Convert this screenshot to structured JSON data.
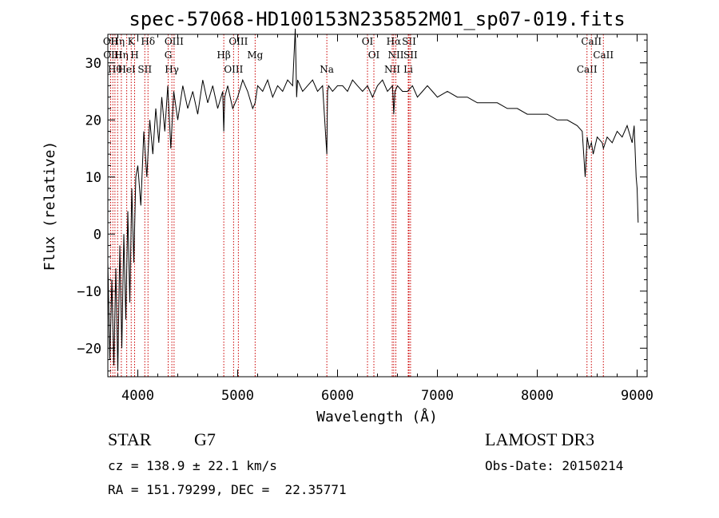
{
  "chart_data": {
    "type": "line",
    "title": "spec-57068-HD100153N235852M01_sp07-019.fits",
    "xlabel": "Wavelength (Å)",
    "ylabel": "Flux (relative)",
    "xlim": [
      3700,
      9100
    ],
    "ylim": [
      -25,
      35
    ],
    "xticks": [
      4000,
      5000,
      6000,
      7000,
      8000,
      9000
    ],
    "yticks": [
      -20,
      -10,
      0,
      10,
      20,
      30
    ],
    "grid": false,
    "series": [
      {
        "name": "flux",
        "x": [
          3700,
          3720,
          3740,
          3760,
          3780,
          3800,
          3820,
          3840,
          3860,
          3880,
          3900,
          3920,
          3940,
          3960,
          3980,
          4000,
          4030,
          4060,
          4090,
          4120,
          4150,
          4180,
          4210,
          4240,
          4270,
          4300,
          4330,
          4360,
          4400,
          4450,
          4500,
          4550,
          4600,
          4650,
          4700,
          4750,
          4800,
          4850,
          4861,
          4870,
          4900,
          4950,
          5000,
          5050,
          5100,
          5150,
          5175,
          5200,
          5250,
          5300,
          5350,
          5400,
          5450,
          5500,
          5550,
          5577,
          5590,
          5600,
          5650,
          5700,
          5750,
          5800,
          5850,
          5893,
          5900,
          5910,
          5950,
          6000,
          6050,
          6100,
          6150,
          6200,
          6250,
          6300,
          6350,
          6400,
          6450,
          6500,
          6550,
          6563,
          6575,
          6600,
          6650,
          6700,
          6750,
          6800,
          6850,
          6900,
          6950,
          7000,
          7100,
          7200,
          7300,
          7400,
          7500,
          7600,
          7700,
          7800,
          7900,
          8000,
          8100,
          8200,
          8300,
          8400,
          8450,
          8480,
          8500,
          8520,
          8542,
          8560,
          8600,
          8650,
          8662,
          8700,
          8750,
          8800,
          8850,
          8900,
          8950,
          8970,
          8990,
          9000,
          9010
        ],
        "values": [
          -5,
          -22,
          -8,
          -23,
          -6,
          -24,
          -2,
          -20,
          0,
          -15,
          4,
          -12,
          8,
          -5,
          10,
          12,
          5,
          18,
          10,
          20,
          14,
          22,
          16,
          24,
          18,
          26,
          15,
          25,
          20,
          26,
          22,
          25,
          21,
          27,
          23,
          26,
          22,
          25,
          18,
          24,
          26,
          22,
          24,
          27,
          25,
          22,
          23,
          26,
          25,
          27,
          24,
          26,
          25,
          27,
          26,
          36,
          24,
          27,
          25,
          26,
          27,
          25,
          26,
          14,
          25,
          26,
          25,
          26,
          26,
          25,
          27,
          26,
          25,
          26,
          24,
          26,
          27,
          25,
          26,
          21,
          25,
          26,
          25,
          25,
          26,
          24,
          25,
          26,
          25,
          24,
          25,
          24,
          24,
          23,
          23,
          23,
          22,
          22,
          21,
          21,
          21,
          20,
          20,
          19,
          18,
          10,
          17,
          15,
          16,
          14,
          17,
          16,
          15,
          17,
          16,
          18,
          17,
          19,
          16,
          19,
          10,
          8,
          2
        ]
      }
    ],
    "line_markers": [
      {
        "wl": 3728,
        "label": "OII"
      },
      {
        "wl": 3750,
        "label": "OIII"
      },
      {
        "wl": 3771,
        "label": "Hθ"
      },
      {
        "wl": 3798,
        "label": "Hη"
      },
      {
        "wl": 3835,
        "label": "Hη"
      },
      {
        "wl": 3889,
        "label": "HeI"
      },
      {
        "wl": 3934,
        "label": "K"
      },
      {
        "wl": 3968,
        "label": "H"
      },
      {
        "wl": 4070,
        "label": "SII"
      },
      {
        "wl": 4102,
        "label": "Hδ"
      },
      {
        "wl": 4304,
        "label": "G"
      },
      {
        "wl": 4341,
        "label": "Hγ"
      },
      {
        "wl": 4363,
        "label": "OIII"
      },
      {
        "wl": 4861,
        "label": "Hβ"
      },
      {
        "wl": 4959,
        "label": "OIII"
      },
      {
        "wl": 5007,
        "label": "OIII"
      },
      {
        "wl": 5175,
        "label": "Mg"
      },
      {
        "wl": 5893,
        "label": "Na"
      },
      {
        "wl": 6300,
        "label": "OI"
      },
      {
        "wl": 6364,
        "label": "OI"
      },
      {
        "wl": 6548,
        "label": "NII"
      },
      {
        "wl": 6563,
        "label": "Hα"
      },
      {
        "wl": 6584,
        "label": "NII"
      },
      {
        "wl": 6708,
        "label": "Li"
      },
      {
        "wl": 6716,
        "label": "SII"
      },
      {
        "wl": 6731,
        "label": "SII"
      },
      {
        "wl": 8498,
        "label": "CaII"
      },
      {
        "wl": 8542,
        "label": "CaII"
      },
      {
        "wl": 8662,
        "label": "CaII"
      }
    ]
  },
  "info": {
    "object_class": "STAR",
    "subclass": "G7",
    "redshift": "cz = 138.9 ± 22.1 km/s",
    "coords": "RA = 151.79299, DEC =  22.35771",
    "survey": "LAMOST DR3",
    "obs_date": "Obs-Date: 20150214"
  }
}
